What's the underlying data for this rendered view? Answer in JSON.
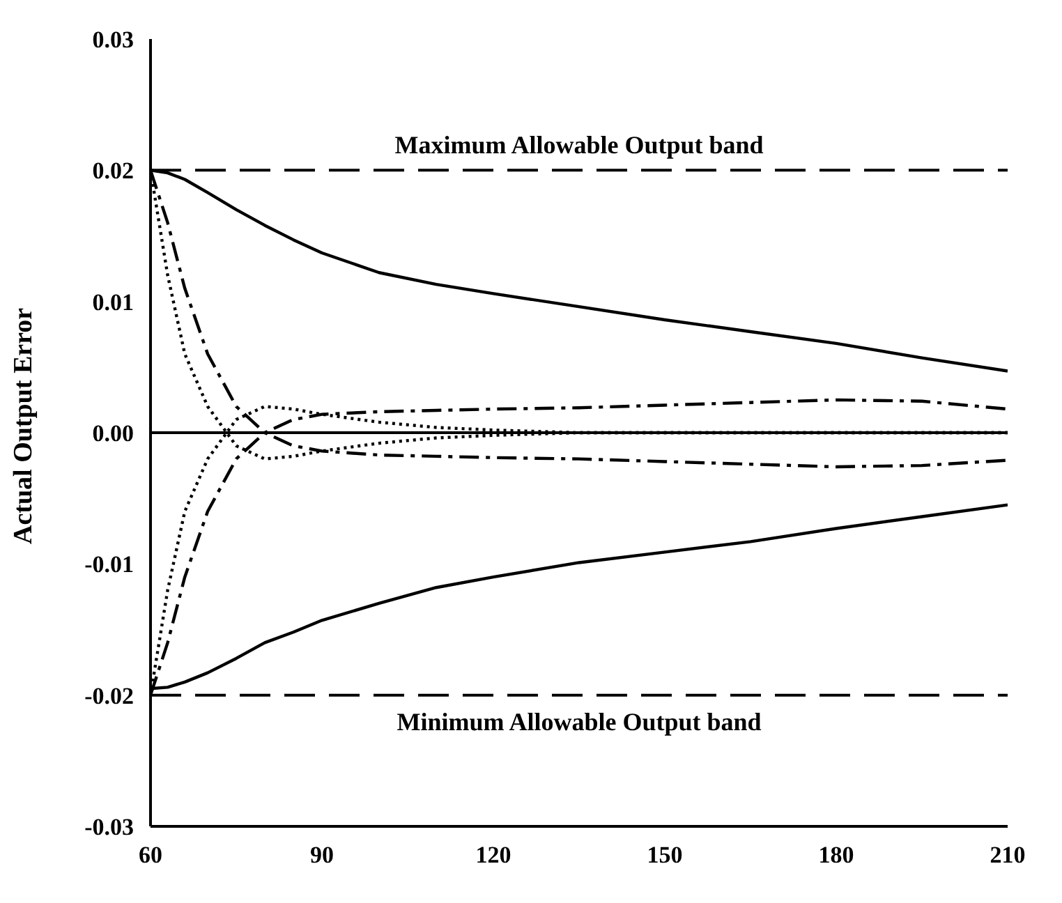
{
  "chart_data": {
    "type": "line",
    "ylabel": "Actual Output Error",
    "xlim": [
      60,
      210
    ],
    "xticks": [
      60,
      90,
      120,
      150,
      180,
      210
    ],
    "ylim": [
      -0.03,
      0.03
    ],
    "yticks": [
      {
        "value": -0.03,
        "label": "-0.03"
      },
      {
        "value": -0.02,
        "label": "-0.02"
      },
      {
        "value": -0.01,
        "label": "-0.01"
      },
      {
        "value": 0,
        "label": "0.00"
      },
      {
        "value": 0.01,
        "label": "0.01"
      },
      {
        "value": 0.02,
        "label": "0.02"
      },
      {
        "value": 0.03,
        "label": "0.03"
      }
    ],
    "grid": false,
    "legend": false,
    "marker": "none",
    "x": [
      60,
      63,
      66,
      70,
      75,
      80,
      85,
      90,
      100,
      110,
      120,
      135,
      150,
      165,
      180,
      195,
      210
    ],
    "series": [
      {
        "color": "#000000",
        "line_style": "solid",
        "values": [
          0.02,
          0.0198,
          0.0193,
          0.0183,
          0.017,
          0.0158,
          0.0147,
          0.0137,
          0.0122,
          0.0113,
          0.0106,
          0.0096,
          0.0086,
          0.0077,
          0.0068,
          0.0057,
          0.0047
        ]
      },
      {
        "color": "#000000",
        "line_style": "solid",
        "values": [
          -0.0195,
          -0.0194,
          -0.019,
          -0.0183,
          -0.0172,
          -0.016,
          -0.0152,
          -0.0143,
          -0.013,
          -0.0118,
          -0.011,
          -0.0099,
          -0.0091,
          -0.0083,
          -0.0073,
          -0.0064,
          -0.0055
        ]
      },
      {
        "color": "#000000",
        "line_style": "dashed",
        "values": [
          0.02,
          0.016,
          0.011,
          0.006,
          0.002,
          0,
          -0.001,
          -0.0014,
          -0.0017,
          -0.0018,
          -0.0019,
          -0.002,
          -0.0022,
          -0.0024,
          -0.0026,
          -0.0025,
          -0.0021
        ]
      },
      {
        "color": "#000000",
        "line_style": "dashed",
        "values": [
          -0.02,
          -0.016,
          -0.011,
          -0.006,
          -0.002,
          0,
          0.001,
          0.0014,
          0.0016,
          0.0017,
          0.0018,
          0.0019,
          0.0021,
          0.0023,
          0.0025,
          0.0024,
          0.0018
        ]
      },
      {
        "color": "#000000",
        "line_style": "dotted",
        "values": [
          0.02,
          0.012,
          0.006,
          0.002,
          -0.001,
          -0.002,
          -0.0018,
          -0.0014,
          -0.0008,
          -0.0004,
          -0.0002,
          0,
          0,
          0,
          0,
          0,
          0
        ]
      },
      {
        "color": "#000000",
        "line_style": "dotted",
        "values": [
          -0.02,
          -0.012,
          -0.006,
          -0.002,
          0.001,
          0.002,
          0.0018,
          0.0014,
          0.0008,
          0.0004,
          0.0002,
          0,
          0,
          0,
          0,
          0,
          0
        ]
      }
    ],
    "ref_lines": [
      {
        "axis": "y",
        "value": 0.02,
        "label": "Maximum Allowable Output band",
        "line_style": "dashed",
        "color": "#000000"
      },
      {
        "axis": "y",
        "value": -0.02,
        "label": "Minimum Allowable Output band",
        "line_style": "dashed",
        "color": "#000000"
      },
      {
        "axis": "y",
        "value": 0,
        "label": null,
        "line_style": "solid",
        "color": "#000000"
      }
    ]
  }
}
